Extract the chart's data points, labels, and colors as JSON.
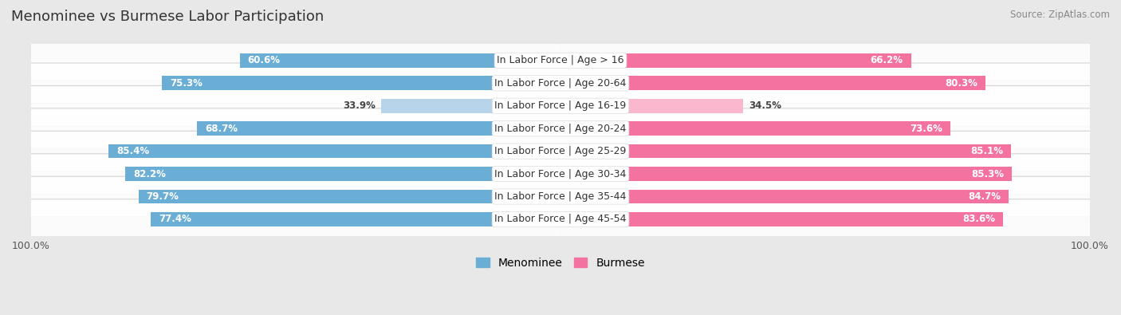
{
  "title": "Menominee vs Burmese Labor Participation",
  "source": "Source: ZipAtlas.com",
  "categories": [
    "In Labor Force | Age > 16",
    "In Labor Force | Age 20-64",
    "In Labor Force | Age 16-19",
    "In Labor Force | Age 20-24",
    "In Labor Force | Age 25-29",
    "In Labor Force | Age 30-34",
    "In Labor Force | Age 35-44",
    "In Labor Force | Age 45-54"
  ],
  "menominee": [
    60.6,
    75.3,
    33.9,
    68.7,
    85.4,
    82.2,
    79.7,
    77.4
  ],
  "burmese": [
    66.2,
    80.3,
    34.5,
    73.6,
    85.1,
    85.3,
    84.7,
    83.6
  ],
  "menominee_color": "#6aaed6",
  "burmese_color": "#f472a0",
  "menominee_light_color": "#b8d4eb",
  "burmese_light_color": "#f9b8ce",
  "background_color": "#e8e8e8",
  "row_bg_color": "#f2f2f2",
  "max_value": 100.0,
  "bar_height": 0.62,
  "title_fontsize": 13,
  "label_fontsize": 9,
  "value_fontsize": 8.5,
  "legend_fontsize": 10,
  "axis_label_fontsize": 9
}
